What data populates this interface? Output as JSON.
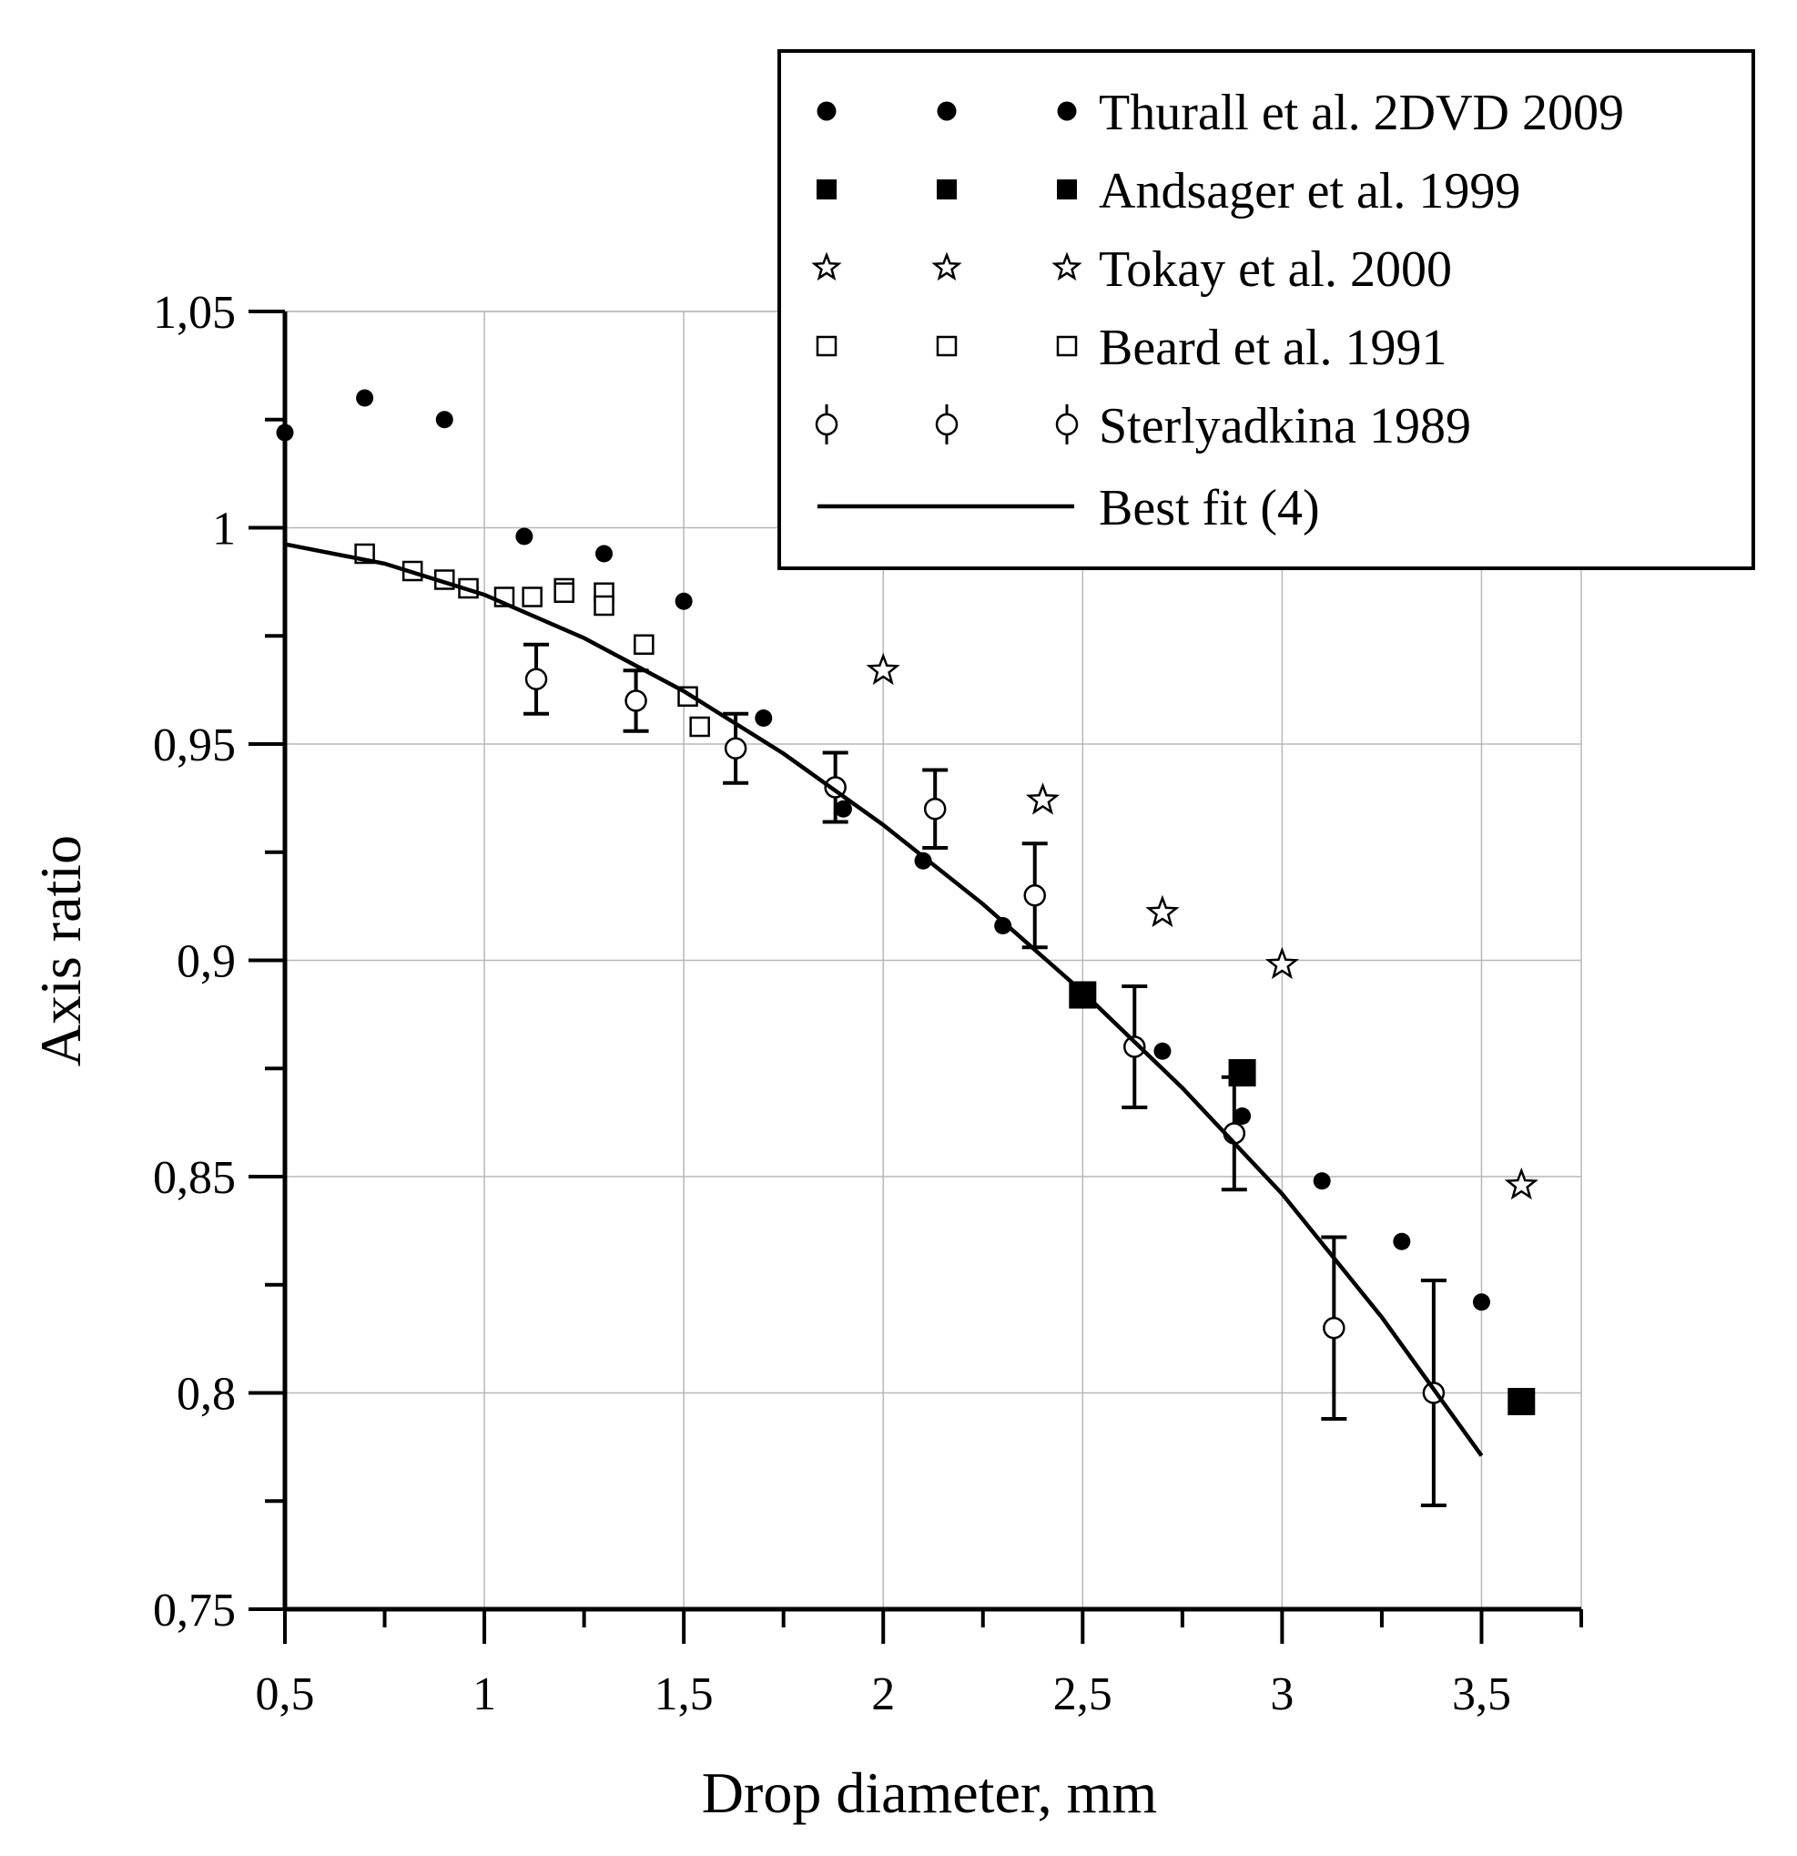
{
  "chart_data": {
    "type": "scatter",
    "xlabel": "Drop diameter, mm",
    "ylabel": "Axis ratio",
    "xlim": [
      0.5,
      3.75
    ],
    "ylim": [
      0.75,
      1.05
    ],
    "grid": true,
    "legend_position": "top-right",
    "x_ticks": [
      {
        "value": 0.5,
        "label": "0,5"
      },
      {
        "value": 1,
        "label": "1"
      },
      {
        "value": 1.5,
        "label": "1,5"
      },
      {
        "value": 2,
        "label": "2"
      },
      {
        "value": 2.5,
        "label": "2,5"
      },
      {
        "value": 3,
        "label": "3"
      },
      {
        "value": 3.5,
        "label": "3,5"
      }
    ],
    "y_ticks": [
      {
        "value": 0.75,
        "label": "0,75"
      },
      {
        "value": 0.8,
        "label": "0,8"
      },
      {
        "value": 0.85,
        "label": "0,85"
      },
      {
        "value": 0.9,
        "label": "0,9"
      },
      {
        "value": 0.95,
        "label": "0,95"
      },
      {
        "value": 1.0,
        "label": "1"
      },
      {
        "value": 1.05,
        "label": "1,05"
      }
    ],
    "series": [
      {
        "name": "Thurall et al. 2DVD 2009",
        "marker": "filled-circle",
        "points": [
          [
            0.5,
            1.022
          ],
          [
            0.7,
            1.03
          ],
          [
            0.9,
            1.025
          ],
          [
            1.1,
            0.998
          ],
          [
            1.3,
            0.994
          ],
          [
            1.5,
            0.983
          ],
          [
            1.7,
            0.956
          ],
          [
            1.9,
            0.935
          ],
          [
            2.1,
            0.923
          ],
          [
            2.3,
            0.908
          ],
          [
            2.5,
            0.892
          ],
          [
            2.7,
            0.879
          ],
          [
            2.9,
            0.864
          ],
          [
            3.1,
            0.849
          ],
          [
            3.3,
            0.835
          ],
          [
            3.5,
            0.821
          ]
        ]
      },
      {
        "name": "Andsager et al. 1999",
        "marker": "filled-square",
        "points": [
          [
            2.5,
            0.892
          ],
          [
            2.9,
            0.874
          ],
          [
            3.6,
            0.798
          ]
        ]
      },
      {
        "name": "Tokay et al. 2000",
        "marker": "open-star",
        "points": [
          [
            2.0,
            0.967
          ],
          [
            2.4,
            0.937
          ],
          [
            2.7,
            0.911
          ],
          [
            3.0,
            0.899
          ],
          [
            3.6,
            0.848
          ]
        ]
      },
      {
        "name": "Beard et al. 1991",
        "marker": "open-square",
        "points": [
          [
            0.7,
            0.994
          ],
          [
            0.82,
            0.99
          ],
          [
            0.9,
            0.988
          ],
          [
            0.96,
            0.986
          ],
          [
            1.05,
            0.984
          ],
          [
            1.12,
            0.984
          ],
          [
            1.2,
            0.986
          ],
          [
            1.2,
            0.985
          ],
          [
            1.3,
            0.985
          ],
          [
            1.3,
            0.982
          ],
          [
            1.4,
            0.973
          ],
          [
            1.51,
            0.961
          ],
          [
            1.54,
            0.954
          ]
        ]
      },
      {
        "name": "Sterlyadkina 1989",
        "marker": "open-circle-errorbar",
        "points": [
          {
            "x": 1.13,
            "y": 0.965,
            "err": 0.008
          },
          {
            "x": 1.38,
            "y": 0.96,
            "err": 0.007
          },
          {
            "x": 1.63,
            "y": 0.949,
            "err": 0.008
          },
          {
            "x": 1.88,
            "y": 0.94,
            "err": 0.008
          },
          {
            "x": 2.13,
            "y": 0.935,
            "err": 0.009
          },
          {
            "x": 2.38,
            "y": 0.915,
            "err": 0.012
          },
          {
            "x": 2.63,
            "y": 0.88,
            "err": 0.014
          },
          {
            "x": 2.88,
            "y": 0.86,
            "err": 0.013
          },
          {
            "x": 3.13,
            "y": 0.815,
            "err": 0.021
          },
          {
            "x": 3.38,
            "y": 0.8,
            "err": 0.026
          }
        ]
      },
      {
        "name": "Best fit (4)",
        "marker": "line",
        "points": [
          [
            0.5,
            0.9962
          ],
          [
            0.75,
            0.9917
          ],
          [
            1.0,
            0.9845
          ],
          [
            1.25,
            0.9745
          ],
          [
            1.5,
            0.9622
          ],
          [
            1.75,
            0.9478
          ],
          [
            2.0,
            0.9313
          ],
          [
            2.25,
            0.913
          ],
          [
            2.5,
            0.8927
          ],
          [
            2.75,
            0.8705
          ],
          [
            3.0,
            0.846
          ],
          [
            3.25,
            0.8175
          ],
          [
            3.5,
            0.7855
          ]
        ]
      }
    ]
  }
}
